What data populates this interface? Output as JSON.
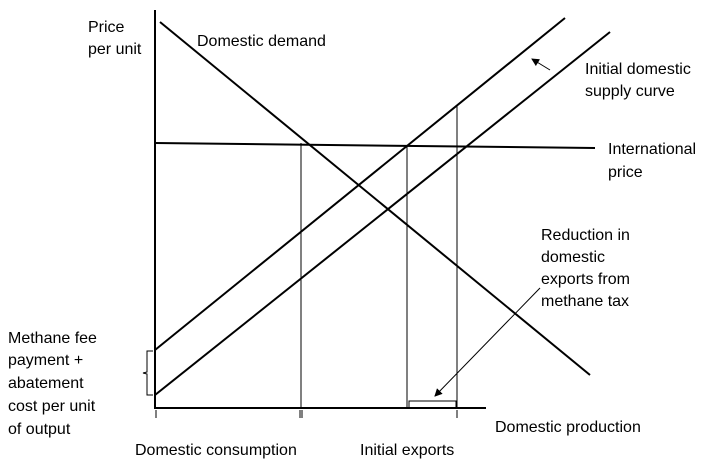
{
  "y_axis_label": [
    "Price",
    "per unit"
  ],
  "x_axis_label": "Domestic production",
  "demand_label": "Domestic demand",
  "supply_label": [
    "Initial domestic",
    "supply curve"
  ],
  "international_price_label": [
    "International",
    "price"
  ],
  "reduction_label": [
    "Reduction in",
    "domestic",
    "exports from",
    "methane tax"
  ],
  "fee_label": [
    "Methane fee",
    "payment +",
    "abatement",
    "cost per unit",
    "of output"
  ],
  "consumption_label": "Domestic consumption",
  "exports_label": "Initial exports"
}
